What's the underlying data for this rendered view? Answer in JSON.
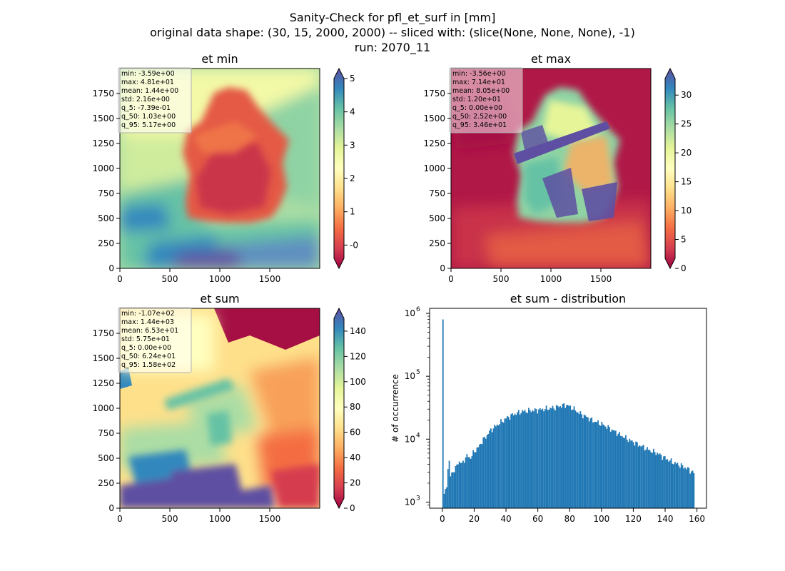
{
  "figure": {
    "title_lines": [
      "Sanity-Check for pfl_et_surf in [mm]",
      "original data shape: (30, 15, 2000, 2000) -- sliced with: (slice(None, None, None), -1)",
      "run: 2070_11"
    ]
  },
  "chart_data": [
    {
      "type": "heatmap",
      "title": "et min",
      "xlim": [
        0,
        2000
      ],
      "ylim": [
        0,
        2000
      ],
      "xticks": [
        "0",
        "500",
        "1000",
        "1500"
      ],
      "yticks": [
        "0",
        "250",
        "500",
        "750",
        "1000",
        "1250",
        "1500",
        "1750"
      ],
      "colormap": "Spectral",
      "colorbar_ticks": [
        "-0",
        "1",
        "2",
        "3",
        "4",
        "5"
      ],
      "colorbar_range": [
        -0.7,
        5.3
      ],
      "colorbar_tick_values": [
        0,
        1,
        2,
        3,
        4,
        5
      ],
      "stats": [
        "min: -3.59e+00",
        "max: 4.81e+01",
        "mean: 1.44e+00",
        "std: 2.16e+00",
        "q_5: -7.39e-01",
        "q_50: 1.03e+00",
        "q_95: 5.17e+00"
      ]
    },
    {
      "type": "heatmap",
      "title": "et max",
      "xlim": [
        0,
        2000
      ],
      "ylim": [
        0,
        2000
      ],
      "xticks": [
        "0",
        "500",
        "1000",
        "1500"
      ],
      "yticks": [
        "0",
        "250",
        "500",
        "750",
        "1000",
        "1250",
        "1500",
        "1750"
      ],
      "colormap": "Spectral",
      "colorbar_ticks": [
        "0",
        "5",
        "10",
        "15",
        "20",
        "25",
        "30"
      ],
      "colorbar_range": [
        0,
        34.6
      ],
      "colorbar_tick_values": [
        0,
        5,
        10,
        15,
        20,
        25,
        30
      ],
      "stats": [
        "min: -3.56e+00",
        "max: 7.14e+01",
        "mean: 8.05e+00",
        "std: 1.20e+01",
        "q_5: 0.00e+00",
        "q_50: 2.52e+00",
        "q_95: 3.46e+01"
      ]
    },
    {
      "type": "heatmap",
      "title": "et sum",
      "xlim": [
        0,
        2000
      ],
      "ylim": [
        0,
        2000
      ],
      "xticks": [
        "0",
        "500",
        "1000",
        "1500"
      ],
      "yticks": [
        "0",
        "250",
        "500",
        "750",
        "1000",
        "1250",
        "1500",
        "1750"
      ],
      "colormap": "Spectral",
      "colorbar_ticks": [
        "0",
        "20",
        "40",
        "60",
        "80",
        "100",
        "120",
        "140"
      ],
      "colorbar_range": [
        0,
        158
      ],
      "colorbar_tick_values": [
        0,
        20,
        40,
        60,
        80,
        100,
        120,
        140
      ],
      "stats": [
        "min: -1.07e+02",
        "max: 1.44e+03",
        "mean: 6.53e+01",
        "std: 5.75e+01",
        "q_5: 0.00e+00",
        "q_50: 6.24e+01",
        "q_95: 1.58e+02"
      ]
    },
    {
      "type": "bar",
      "title": "et sum - distribution",
      "ylabel": "# of occurrence",
      "yscale": "log",
      "xlim": [
        -8,
        166
      ],
      "ylim": [
        800,
        1200000
      ],
      "xticks": [
        0,
        20,
        40,
        60,
        80,
        100,
        120,
        140,
        160
      ],
      "ytick_labels": [
        {
          "base": "10",
          "exp": "3"
        },
        {
          "base": "10",
          "exp": "4"
        },
        {
          "base": "10",
          "exp": "5"
        },
        {
          "base": "10",
          "exp": "6"
        }
      ],
      "bar_color": "#1f77b4",
      "anchors": [
        [
          0,
          800000
        ],
        [
          1,
          1300
        ],
        [
          2,
          1500
        ],
        [
          3,
          2000
        ],
        [
          4,
          5500
        ],
        [
          5,
          2500
        ],
        [
          6,
          3000
        ],
        [
          8,
          3200
        ],
        [
          10,
          4500
        ],
        [
          12,
          4000
        ],
        [
          14,
          4800
        ],
        [
          16,
          5500
        ],
        [
          18,
          5000
        ],
        [
          20,
          6500
        ],
        [
          22,
          7000
        ],
        [
          24,
          8500
        ],
        [
          26,
          10000
        ],
        [
          28,
          11500
        ],
        [
          30,
          13500
        ],
        [
          32,
          15000
        ],
        [
          34,
          16500
        ],
        [
          36,
          18000
        ],
        [
          38,
          19500
        ],
        [
          40,
          21500
        ],
        [
          45,
          25000
        ],
        [
          50,
          27500
        ],
        [
          55,
          28500
        ],
        [
          60,
          29000
        ],
        [
          65,
          30500
        ],
        [
          70,
          31500
        ],
        [
          75,
          34000
        ],
        [
          78,
          35000
        ],
        [
          82,
          31000
        ],
        [
          86,
          26000
        ],
        [
          90,
          23000
        ],
        [
          95,
          19500
        ],
        [
          100,
          17500
        ],
        [
          105,
          15000
        ],
        [
          110,
          12500
        ],
        [
          115,
          10500
        ],
        [
          120,
          9000
        ],
        [
          125,
          7800
        ],
        [
          130,
          6700
        ],
        [
          135,
          6000
        ],
        [
          140,
          5000
        ],
        [
          145,
          4300
        ],
        [
          150,
          3800
        ],
        [
          155,
          3300
        ],
        [
          158,
          2900
        ]
      ]
    }
  ]
}
